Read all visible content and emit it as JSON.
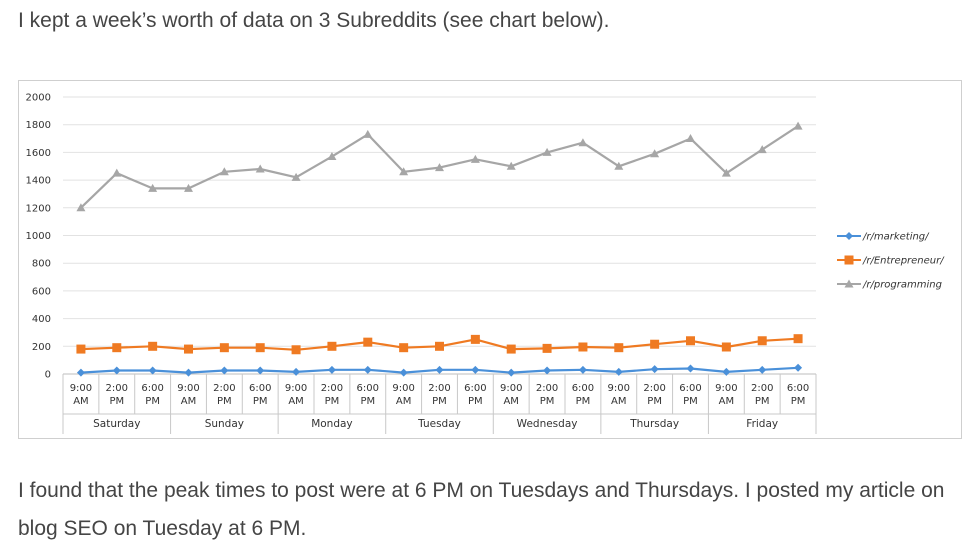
{
  "text": {
    "intro": "I kept a week’s worth of data on 3 Subreddits (see chart below).",
    "outro": "I found that the peak times to post were at 6 PM on Tuesdays and Thursdays. I posted my article on blog SEO on Tuesday at 6 PM."
  },
  "chart_data": {
    "type": "line",
    "title": "",
    "xlabel": "",
    "ylabel": "",
    "ylim": [
      0,
      2000
    ],
    "yticks": [
      0,
      200,
      400,
      600,
      800,
      1000,
      1200,
      1400,
      1600,
      1800,
      2000
    ],
    "grid": true,
    "legend_position": "right",
    "groups": [
      "Saturday",
      "Sunday",
      "Monday",
      "Tuesday",
      "Wednesday",
      "Thursday",
      "Friday"
    ],
    "times": [
      [
        "9:00",
        "AM"
      ],
      [
        "2:00",
        "PM"
      ],
      [
        "6:00",
        "PM"
      ]
    ],
    "categories": [
      "Saturday 9:00 AM",
      "Saturday 2:00 PM",
      "Saturday 6:00 PM",
      "Sunday 9:00 AM",
      "Sunday 2:00 PM",
      "Sunday 6:00 PM",
      "Monday 9:00 AM",
      "Monday 2:00 PM",
      "Monday 6:00 PM",
      "Tuesday 9:00 AM",
      "Tuesday 2:00 PM",
      "Tuesday 6:00 PM",
      "Wednesday 9:00 AM",
      "Wednesday 2:00 PM",
      "Wednesday 6:00 PM",
      "Thursday 9:00 AM",
      "Thursday 2:00 PM",
      "Thursday 6:00 PM",
      "Friday 9:00 AM",
      "Friday 2:00 PM",
      "Friday 6:00 PM"
    ],
    "series": [
      {
        "name": "/r/marketing/",
        "color": "#4a90d9",
        "marker": "diamond",
        "values": [
          10,
          25,
          25,
          10,
          25,
          25,
          15,
          30,
          30,
          10,
          30,
          30,
          10,
          25,
          30,
          15,
          35,
          40,
          15,
          30,
          45
        ]
      },
      {
        "name": "/r/Entrepreneur/",
        "color": "#ef7a22",
        "marker": "square",
        "values": [
          180,
          190,
          200,
          180,
          190,
          190,
          175,
          200,
          230,
          190,
          200,
          250,
          180,
          185,
          195,
          190,
          215,
          240,
          195,
          240,
          255
        ]
      },
      {
        "name": "/r/programming",
        "color": "#a6a6a6",
        "marker": "triangle",
        "values": [
          1200,
          1450,
          1340,
          1340,
          1460,
          1480,
          1420,
          1570,
          1730,
          1460,
          1490,
          1550,
          1500,
          1600,
          1670,
          1500,
          1590,
          1700,
          1450,
          1620,
          1790
        ]
      }
    ]
  }
}
